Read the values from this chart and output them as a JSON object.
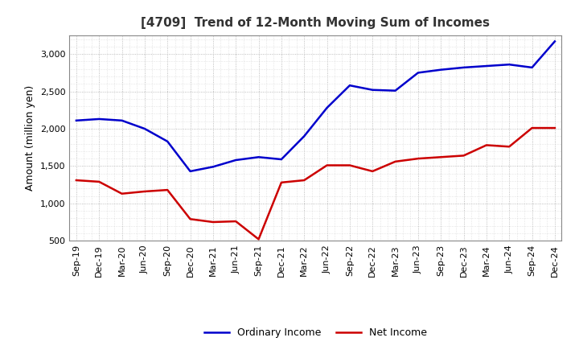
{
  "title": "[4709]  Trend of 12-Month Moving Sum of Incomes",
  "ylabel": "Amount (million yen)",
  "ylim": [
    500,
    3250
  ],
  "yticks": [
    500,
    1000,
    1500,
    2000,
    2500,
    3000
  ],
  "background_color": "#ffffff",
  "grid_color": "#aaaaaa",
  "ordinary_income_color": "#0000cc",
  "net_income_color": "#cc0000",
  "x_labels": [
    "Sep-19",
    "Dec-19",
    "Mar-20",
    "Jun-20",
    "Sep-20",
    "Dec-20",
    "Mar-21",
    "Jun-21",
    "Sep-21",
    "Dec-21",
    "Mar-22",
    "Jun-22",
    "Sep-22",
    "Dec-22",
    "Mar-23",
    "Jun-23",
    "Sep-23",
    "Dec-23",
    "Mar-24",
    "Jun-24",
    "Sep-24",
    "Dec-24"
  ],
  "ordinary_income": [
    2110,
    2130,
    2110,
    2000,
    1830,
    1430,
    1490,
    1580,
    1620,
    1590,
    1900,
    2280,
    2580,
    2520,
    2510,
    2750,
    2790,
    2820,
    2840,
    2860,
    2820,
    3170
  ],
  "net_income": [
    1310,
    1290,
    1130,
    1160,
    1180,
    790,
    750,
    760,
    520,
    1280,
    1310,
    1510,
    1510,
    1430,
    1560,
    1600,
    1620,
    1640,
    1780,
    1760,
    2010,
    2010
  ]
}
